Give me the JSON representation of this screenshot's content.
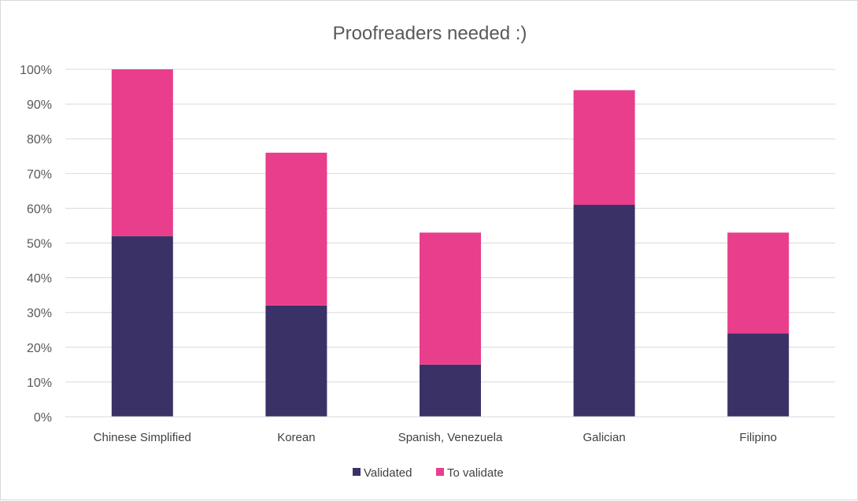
{
  "chart_data": {
    "type": "bar",
    "stacked": true,
    "title": "Proofreaders needed :)",
    "xlabel": "",
    "ylabel": "",
    "categories": [
      "Chinese Simplified",
      "Korean",
      "Spanish, Venezuela",
      "Galician",
      "Filipino"
    ],
    "series": [
      {
        "name": "Validated",
        "color": "#3a3267",
        "values": [
          52,
          32,
          15,
          61,
          24
        ]
      },
      {
        "name": "To validate",
        "color": "#e83e8c",
        "values": [
          48,
          44,
          38,
          33,
          29
        ]
      }
    ],
    "ylim": [
      0,
      100
    ],
    "yticks": [
      "0%",
      "10%",
      "20%",
      "30%",
      "40%",
      "50%",
      "60%",
      "70%",
      "80%",
      "90%",
      "100%"
    ],
    "grid": true,
    "legend_position": "bottom"
  }
}
